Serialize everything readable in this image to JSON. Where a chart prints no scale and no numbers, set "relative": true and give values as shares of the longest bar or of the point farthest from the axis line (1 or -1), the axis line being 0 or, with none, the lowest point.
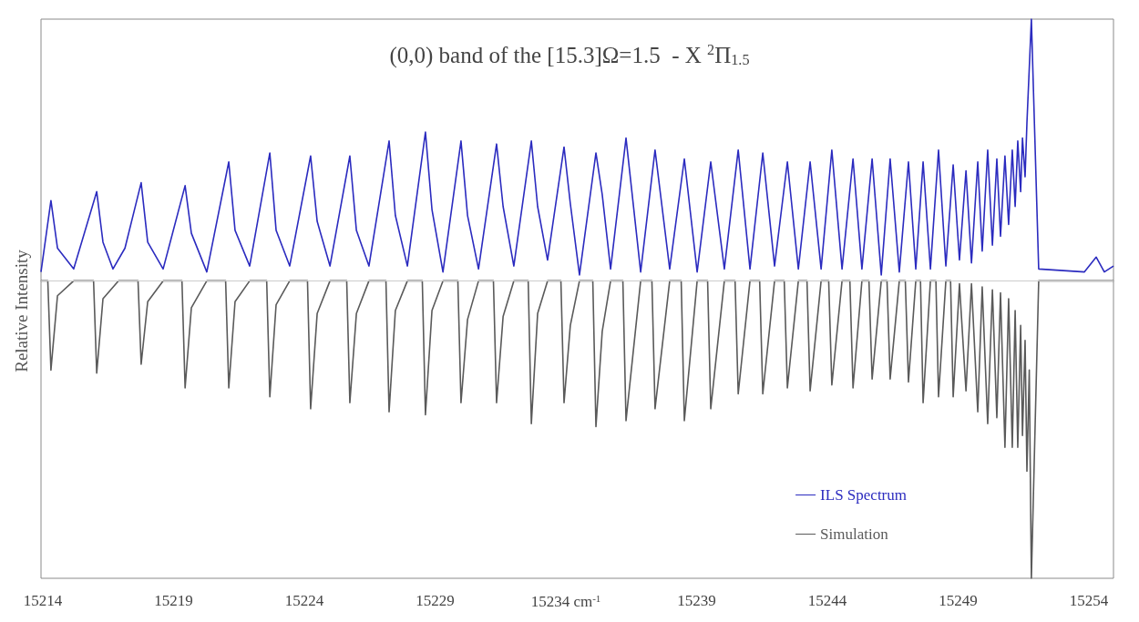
{
  "chart_data": {
    "type": "line",
    "title": "(0,0) band of the [15.3]Ω=1.5  - X $^{2}$Π$_{1.5}$",
    "ylabel": "Relative Intensity",
    "relative": true,
    "legend": "bottom right",
    "grid": false,
    "xlim": [
      15213.93,
      15254.94
    ],
    "xticks": [
      15214,
      15219,
      15224,
      15229,
      {
        "value": 15234,
        "label": "15234 cm$^{-1}$"
      },
      15239,
      15244,
      15249,
      15254
    ],
    "ref_lines": [
      {
        "axis": "y",
        "value": 0,
        "color": "#cccccc"
      }
    ],
    "series": [
      {
        "name": "ILS Spectrum",
        "color": "#2b2bbf",
        "x": [
          15213.93,
          15214.31,
          15214.56,
          15215.18,
          15216.06,
          15216.3,
          15216.68,
          15217.14,
          15217.76,
          15218.01,
          15218.6,
          15219.44,
          15219.68,
          15220.27,
          15221.11,
          15221.35,
          15221.91,
          15222.68,
          15222.92,
          15223.44,
          15224.24,
          15224.49,
          15224.98,
          15225.74,
          15225.99,
          15226.47,
          15227.24,
          15227.48,
          15227.94,
          15228.63,
          15228.88,
          15229.3,
          15229.99,
          15230.24,
          15230.66,
          15231.35,
          15231.6,
          15232.01,
          15232.68,
          15232.92,
          15233.3,
          15233.93,
          15234.17,
          15234.52,
          15235.15,
          15235.39,
          15235.71,
          15236.3,
          15236.86,
          15237.41,
          15237.97,
          15238.53,
          15239.02,
          15239.54,
          15240.06,
          15240.59,
          15241.04,
          15241.53,
          15241.98,
          15242.47,
          15242.89,
          15243.34,
          15243.76,
          15244.17,
          15244.56,
          15244.98,
          15245.32,
          15245.71,
          15246.06,
          15246.4,
          15246.75,
          15247.1,
          15247.38,
          15247.66,
          15247.94,
          15248.25,
          15248.53,
          15248.81,
          15249.05,
          15249.3,
          15249.51,
          15249.75,
          15249.92,
          15250.13,
          15250.31,
          15250.48,
          15250.62,
          15250.79,
          15250.93,
          15251.07,
          15251.18,
          15251.28,
          15251.39,
          15251.46,
          15251.56,
          15251.63,
          15251.8,
          15252.08,
          15253.83,
          15254.28,
          15254.59,
          15254.94
        ],
        "values": [
          0.03,
          0.27,
          0.11,
          0.04,
          0.3,
          0.13,
          0.04,
          0.11,
          0.33,
          0.13,
          0.04,
          0.32,
          0.16,
          0.03,
          0.4,
          0.17,
          0.05,
          0.43,
          0.17,
          0.05,
          0.42,
          0.2,
          0.05,
          0.42,
          0.17,
          0.05,
          0.47,
          0.22,
          0.05,
          0.5,
          0.24,
          0.03,
          0.47,
          0.22,
          0.04,
          0.46,
          0.25,
          0.05,
          0.47,
          0.25,
          0.07,
          0.45,
          0.26,
          0.02,
          0.43,
          0.29,
          0.04,
          0.48,
          0.03,
          0.44,
          0.04,
          0.41,
          0.03,
          0.4,
          0.04,
          0.44,
          0.04,
          0.43,
          0.05,
          0.4,
          0.04,
          0.4,
          0.04,
          0.44,
          0.04,
          0.41,
          0.04,
          0.41,
          0.02,
          0.41,
          0.03,
          0.4,
          0.04,
          0.4,
          0.04,
          0.44,
          0.05,
          0.39,
          0.07,
          0.37,
          0.06,
          0.4,
          0.1,
          0.44,
          0.12,
          0.41,
          0.15,
          0.42,
          0.19,
          0.44,
          0.25,
          0.47,
          0.3,
          0.48,
          0.35,
          0.53,
          0.88,
          0.04,
          0.03,
          0.08,
          0.03,
          0.05
        ]
      },
      {
        "name": "Simulation",
        "color": "#5a5a5a",
        "x": [
          15213.93,
          15214.19,
          15214.31,
          15214.56,
          15215.18,
          15215.94,
          15216.06,
          15216.3,
          15216.89,
          15217.64,
          15217.76,
          15218.01,
          15218.6,
          15219.32,
          15219.44,
          15219.68,
          15220.27,
          15220.99,
          15221.11,
          15221.35,
          15221.91,
          15222.56,
          15222.68,
          15222.92,
          15223.44,
          15224.12,
          15224.24,
          15224.49,
          15224.98,
          15225.62,
          15225.74,
          15225.99,
          15226.47,
          15227.12,
          15227.24,
          15227.48,
          15227.94,
          15228.51,
          15228.63,
          15228.88,
          15229.3,
          15229.87,
          15229.99,
          15230.24,
          15230.66,
          15231.23,
          15231.35,
          15231.6,
          15232.01,
          15232.56,
          15232.68,
          15232.92,
          15233.3,
          15233.81,
          15233.93,
          15234.17,
          15234.52,
          15235.03,
          15235.15,
          15235.39,
          15235.71,
          15236.18,
          15236.3,
          15236.86,
          15237.29,
          15237.41,
          15237.97,
          15238.41,
          15238.53,
          15239.02,
          15239.42,
          15239.54,
          15240.06,
          15240.47,
          15240.59,
          15241.04,
          15241.41,
          15241.53,
          15241.98,
          15242.35,
          15242.47,
          15242.89,
          15243.22,
          15243.34,
          15243.76,
          15244.05,
          15244.17,
          15244.56,
          15244.86,
          15244.98,
          15245.32,
          15245.59,
          15245.71,
          15246.06,
          15246.28,
          15246.4,
          15246.75,
          15246.98,
          15247.1,
          15247.38,
          15247.56,
          15247.66,
          15247.94,
          15248.15,
          15248.25,
          15248.53,
          15248.71,
          15248.81,
          15249.05,
          15249.3,
          15249.51,
          15249.75,
          15249.92,
          15250.13,
          15250.31,
          15250.48,
          15250.62,
          15250.79,
          15250.93,
          15251.07,
          15251.18,
          15251.28,
          15251.39,
          15251.46,
          15251.56,
          15251.63,
          15251.72,
          15251.8,
          15252.08,
          15254.94
        ],
        "values": [
          0,
          0,
          -0.3,
          -0.05,
          0,
          0,
          -0.31,
          -0.06,
          0,
          0,
          -0.28,
          -0.07,
          0,
          0,
          -0.36,
          -0.09,
          0,
          0,
          -0.36,
          -0.07,
          0,
          0,
          -0.39,
          -0.08,
          0,
          0,
          -0.43,
          -0.11,
          0,
          0,
          -0.41,
          -0.11,
          0,
          0,
          -0.44,
          -0.1,
          0,
          0,
          -0.45,
          -0.1,
          0,
          0,
          -0.41,
          -0.13,
          0,
          0,
          -0.41,
          -0.12,
          0,
          0,
          -0.48,
          -0.11,
          0,
          0,
          -0.41,
          -0.15,
          0,
          0,
          -0.49,
          -0.17,
          0,
          0,
          -0.47,
          0,
          0,
          -0.43,
          0,
          0,
          -0.47,
          0,
          0,
          -0.43,
          0,
          0,
          -0.38,
          0,
          0,
          -0.38,
          0,
          0,
          -0.36,
          0,
          0,
          -0.37,
          0,
          0,
          -0.35,
          0,
          0,
          -0.36,
          0,
          0,
          -0.33,
          0,
          0,
          -0.33,
          0,
          0,
          -0.34,
          0,
          0,
          -0.41,
          0,
          0,
          -0.39,
          0,
          0,
          -0.39,
          -0.01,
          -0.37,
          -0.01,
          -0.44,
          -0.02,
          -0.48,
          -0.03,
          -0.46,
          -0.04,
          -0.56,
          -0.06,
          -0.56,
          -0.1,
          -0.56,
          -0.15,
          -0.52,
          -0.2,
          -0.64,
          -0.3,
          -1,
          0,
          0
        ]
      }
    ]
  }
}
